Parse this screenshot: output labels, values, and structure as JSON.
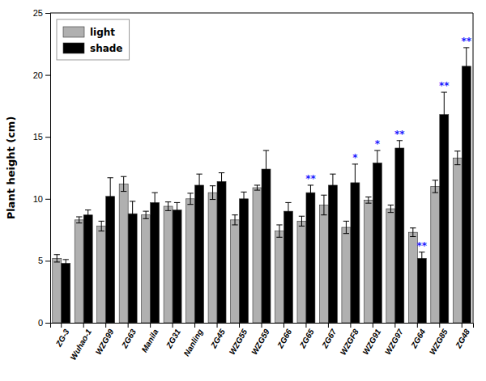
{
  "chart_data": {
    "type": "bar",
    "ylabel": "Plant height (cm)",
    "categories": [
      "ZG-3",
      "Wuhao-1",
      "WZG99",
      "ZG63",
      "Manila",
      "ZG31",
      "Nanling",
      "ZG45",
      "WZG55",
      "WZG59",
      "ZG66",
      "ZG65",
      "ZG67",
      "WZGF8",
      "WZG91",
      "WZG97",
      "ZG64",
      "WZG85",
      "ZG48"
    ],
    "series": [
      {
        "name": "light",
        "color": "#b0b0b0",
        "values": [
          5.2,
          8.3,
          7.8,
          11.2,
          8.7,
          9.4,
          10.0,
          10.5,
          8.3,
          10.9,
          7.4,
          8.2,
          9.5,
          7.7,
          9.9,
          9.2,
          7.3,
          11.0,
          13.3
        ],
        "errors": [
          0.3,
          0.25,
          0.4,
          0.6,
          0.3,
          0.35,
          0.45,
          0.55,
          0.4,
          0.2,
          0.5,
          0.4,
          0.8,
          0.5,
          0.25,
          0.3,
          0.35,
          0.5,
          0.55
        ]
      },
      {
        "name": "shade",
        "color": "#000000",
        "values": [
          4.8,
          8.7,
          10.2,
          8.8,
          9.7,
          9.1,
          11.1,
          11.4,
          10.0,
          12.4,
          9.0,
          10.5,
          11.1,
          11.3,
          12.9,
          14.1,
          5.2,
          16.8,
          20.7
        ],
        "errors": [
          0.3,
          0.4,
          1.5,
          1.0,
          0.8,
          0.6,
          0.9,
          0.7,
          0.55,
          1.5,
          0.7,
          0.6,
          0.9,
          1.5,
          1.0,
          0.6,
          0.5,
          1.8,
          1.5
        ]
      }
    ],
    "annotations": [
      {
        "text": "**",
        "category": "ZG65",
        "series": "shade"
      },
      {
        "text": "*",
        "category": "WZGF8",
        "series": "shade"
      },
      {
        "text": "*",
        "category": "WZG91",
        "series": "shade"
      },
      {
        "text": "**",
        "category": "WZG97",
        "series": "shade"
      },
      {
        "text": "**",
        "category": "ZG64",
        "series": "shade"
      },
      {
        "text": "**",
        "category": "WZG85",
        "series": "shade"
      },
      {
        "text": "**",
        "category": "ZG48",
        "series": "shade"
      }
    ],
    "ylim": [
      0,
      25
    ],
    "yticks": [
      0,
      5,
      10,
      15,
      20,
      25
    ],
    "legend": "upper left",
    "grid": false
  }
}
